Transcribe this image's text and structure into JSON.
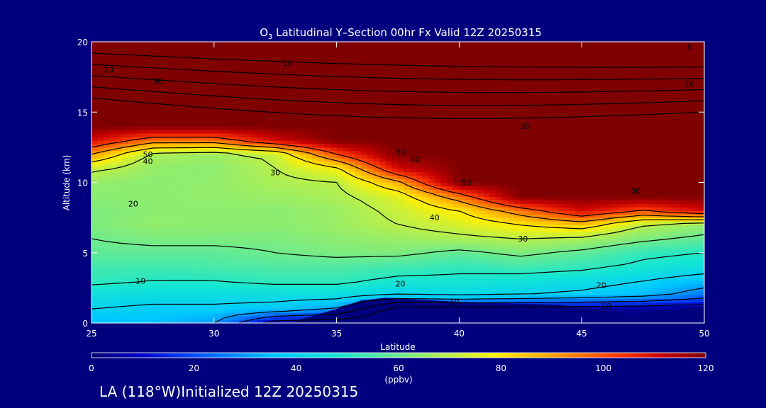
{
  "chart_data": {
    "type": "heatmap",
    "title": "O3 Latitudinal Y-Section 00hr  Fx Valid 12Z 20250315",
    "title_prefix": "O",
    "title_sub": "3",
    "title_rest": " Latitudinal Y–Section 00hr  Fx Valid 12Z 20250315",
    "xlabel": "Latitude",
    "ylabel": "Altitude (km)",
    "xlim": [
      25,
      50
    ],
    "ylim": [
      0,
      20
    ],
    "xticks": [
      25,
      30,
      35,
      40,
      45,
      50
    ],
    "yticks": [
      0,
      5,
      10,
      15,
      20
    ],
    "colorbar": {
      "min": 0,
      "max": 120,
      "ticks": [
        0,
        20,
        40,
        60,
        80,
        100,
        120
      ],
      "unit": "(ppbv)"
    },
    "lat": [
      25,
      27.5,
      30,
      32.5,
      35,
      37.5,
      40,
      42.5,
      45,
      47.5,
      50
    ],
    "alt": [
      0,
      1,
      2,
      3,
      4,
      5,
      6,
      7,
      8,
      9,
      10,
      11,
      12,
      13,
      14,
      15,
      16,
      17,
      18,
      19,
      20
    ],
    "values": [
      [
        35,
        35,
        30,
        5,
        3,
        3,
        3,
        3,
        3,
        3,
        3
      ],
      [
        40,
        38,
        38,
        36,
        30,
        3,
        3,
        3,
        3,
        3,
        3
      ],
      [
        45,
        44,
        44,
        44,
        44,
        40,
        42,
        40,
        38,
        34,
        25
      ],
      [
        52,
        50,
        50,
        52,
        52,
        48,
        48,
        46,
        44,
        40,
        35
      ],
      [
        54,
        54,
        55,
        56,
        56,
        54,
        52,
        54,
        52,
        48,
        45
      ],
      [
        58,
        58,
        58,
        60,
        62,
        62,
        58,
        62,
        58,
        52,
        50
      ],
      [
        60,
        62,
        62,
        62,
        64,
        66,
        68,
        70,
        68,
        62,
        58
      ],
      [
        62,
        65,
        64,
        64,
        66,
        70,
        74,
        80,
        85,
        70,
        65
      ],
      [
        62,
        64,
        64,
        64,
        66,
        72,
        80,
        95,
        110,
        100,
        110
      ],
      [
        64,
        64,
        65,
        66,
        68,
        75,
        95,
        120,
        120,
        120,
        120
      ],
      [
        65,
        64,
        65,
        68,
        70,
        88,
        120,
        120,
        120,
        120,
        120
      ],
      [
        72,
        65,
        64,
        70,
        78,
        110,
        120,
        120,
        120,
        120,
        120
      ],
      [
        90,
        68,
        66,
        72,
        100,
        120,
        120,
        120,
        120,
        120,
        120
      ],
      [
        110,
        95,
        95,
        110,
        120,
        120,
        120,
        120,
        120,
        120,
        120
      ],
      [
        120,
        120,
        120,
        120,
        120,
        120,
        120,
        120,
        120,
        120,
        120
      ],
      [
        120,
        120,
        120,
        120,
        120,
        120,
        120,
        120,
        120,
        120,
        120
      ],
      [
        120,
        120,
        120,
        120,
        120,
        120,
        120,
        120,
        120,
        120,
        120
      ],
      [
        120,
        120,
        120,
        120,
        120,
        120,
        120,
        120,
        120,
        120,
        120
      ],
      [
        120,
        120,
        120,
        120,
        120,
        120,
        120,
        120,
        120,
        120,
        120
      ],
      [
        120,
        120,
        120,
        120,
        120,
        120,
        120,
        120,
        120,
        120,
        120
      ],
      [
        120,
        120,
        120,
        120,
        120,
        120,
        120,
        120,
        120,
        120,
        120
      ]
    ],
    "terrain": [
      {
        "lat": 25,
        "alt": 0
      },
      {
        "lat": 33,
        "alt": 0
      },
      {
        "lat": 34,
        "alt": 0.5
      },
      {
        "lat": 35,
        "alt": 1.0
      },
      {
        "lat": 36,
        "alt": 1.6
      },
      {
        "lat": 37,
        "alt": 1.8
      },
      {
        "lat": 38,
        "alt": 1.7
      },
      {
        "lat": 39,
        "alt": 1.6
      },
      {
        "lat": 40,
        "alt": 1.5
      },
      {
        "lat": 42,
        "alt": 1.4
      },
      {
        "lat": 44,
        "alt": 1.3
      },
      {
        "lat": 45,
        "alt": 1.1
      },
      {
        "lat": 46,
        "alt": 0.9
      },
      {
        "lat": 47,
        "alt": 0.6
      },
      {
        "lat": 48,
        "alt": 0.9
      },
      {
        "lat": 49,
        "alt": 1.0
      },
      {
        "lat": 50,
        "alt": 1.2
      }
    ],
    "contour_labels": [
      {
        "text": "10",
        "lat": 27.0,
        "alt": 3.0
      },
      {
        "text": "20",
        "lat": 26.7,
        "alt": 8.5
      },
      {
        "text": "30",
        "lat": 32.5,
        "alt": 10.7
      },
      {
        "text": "50",
        "lat": 27.3,
        "alt": 12.0
      },
      {
        "text": "40",
        "lat": 27.3,
        "alt": 11.5
      },
      {
        "text": "50",
        "lat": 40.3,
        "alt": 10.0
      },
      {
        "text": "40",
        "lat": 39.0,
        "alt": 7.5
      },
      {
        "text": "30",
        "lat": 42.6,
        "alt": 6.0
      },
      {
        "text": "20",
        "lat": 37.6,
        "alt": 2.8
      },
      {
        "text": "10",
        "lat": 39.8,
        "alt": 1.5
      },
      {
        "text": "20",
        "lat": 45.8,
        "alt": 2.7
      },
      {
        "text": "10",
        "lat": 46.0,
        "alt": 1.2
      },
      {
        "text": "30",
        "lat": 37.6,
        "alt": 12.2
      },
      {
        "text": "40",
        "lat": 38.2,
        "alt": 11.6
      },
      {
        "text": "30",
        "lat": 47.2,
        "alt": 9.4
      },
      {
        "text": "20",
        "lat": 42.7,
        "alt": 14.0
      },
      {
        "text": "30",
        "lat": 27.7,
        "alt": 17.2
      },
      {
        "text": "20",
        "lat": 25.7,
        "alt": 18.0
      },
      {
        "text": "10",
        "lat": 33.0,
        "alt": 18.5
      },
      {
        "text": "10",
        "lat": 49.4,
        "alt": 17.0
      },
      {
        "text": "5",
        "lat": 49.4,
        "alt": 19.6
      }
    ]
  },
  "footer": {
    "text": "LA (118°W)Initialized 12Z 20250315"
  }
}
